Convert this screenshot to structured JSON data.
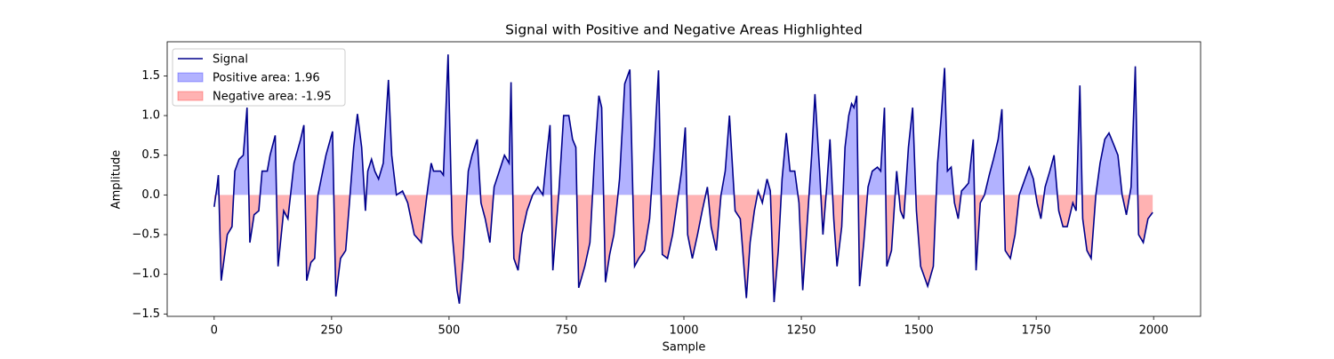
{
  "chart_data": {
    "type": "line",
    "title": "Signal with Positive and Negative Areas Highlighted",
    "xlabel": "Sample",
    "ylabel": "Amplitude",
    "x": [
      0,
      6,
      9,
      15,
      28,
      38,
      44,
      53,
      62,
      70,
      76,
      85,
      95,
      102,
      113,
      119,
      130,
      136,
      148,
      157,
      170,
      184,
      191,
      197,
      206,
      214,
      221,
      238,
      252,
      259,
      269,
      280,
      288,
      297,
      305,
      314,
      322,
      327,
      335,
      342,
      350,
      360,
      371,
      378,
      388,
      401,
      412,
      426,
      441,
      454,
      462,
      467,
      482,
      488,
      498,
      507,
      517,
      522,
      530,
      541,
      549,
      560,
      568,
      577,
      587,
      596,
      607,
      618,
      628,
      632,
      638,
      647,
      655,
      666,
      678,
      689,
      700,
      708,
      715,
      721,
      734,
      744,
      755,
      763,
      770,
      776,
      789,
      800,
      810,
      819,
      825,
      833,
      842,
      851,
      863,
      874,
      885,
      895,
      904,
      916,
      927,
      937,
      946,
      954,
      965,
      976,
      988,
      995,
      1003,
      1008,
      1018,
      1029,
      1039,
      1050,
      1058,
      1069,
      1079,
      1088,
      1097,
      1109,
      1120,
      1133,
      1141,
      1150,
      1158,
      1167,
      1177,
      1184,
      1192,
      1201,
      1209,
      1218,
      1226,
      1236,
      1245,
      1253,
      1262,
      1272,
      1279,
      1289,
      1296,
      1304,
      1311,
      1319,
      1326,
      1336,
      1343,
      1351,
      1357,
      1362,
      1368,
      1374,
      1383,
      1392,
      1401,
      1412,
      1419,
      1427,
      1432,
      1442,
      1453,
      1461,
      1468,
      1478,
      1487,
      1495,
      1504,
      1519,
      1531,
      1540,
      1548,
      1555,
      1561,
      1569,
      1576,
      1584,
      1591,
      1599,
      1606,
      1616,
      1622,
      1631,
      1640,
      1650,
      1659,
      1669,
      1677,
      1684,
      1695,
      1705,
      1714,
      1726,
      1735,
      1744,
      1752,
      1760,
      1769,
      1779,
      1788,
      1798,
      1807,
      1816,
      1828,
      1835,
      1843,
      1849,
      1858,
      1867,
      1877,
      1886,
      1896,
      1905,
      1914,
      1924,
      1933,
      1942,
      1952,
      1961,
      1968,
      1978,
      1988,
      1998
    ],
    "series": [
      {
        "name": "Signal",
        "color": "#00008b",
        "values": [
          -0.15,
          0.1,
          0.25,
          -1.08,
          -0.5,
          -0.4,
          0.3,
          0.45,
          0.5,
          1.1,
          -0.6,
          -0.25,
          -0.2,
          0.3,
          0.3,
          0.5,
          0.75,
          -0.9,
          -0.2,
          -0.3,
          0.4,
          0.7,
          0.88,
          -1.08,
          -0.85,
          -0.8,
          0.0,
          0.5,
          0.8,
          -1.28,
          -0.8,
          -0.7,
          -0.1,
          0.6,
          1.02,
          0.6,
          -0.2,
          0.3,
          0.45,
          0.3,
          0.2,
          0.4,
          1.45,
          0.5,
          0.0,
          0.05,
          -0.1,
          -0.5,
          -0.6,
          0.05,
          0.4,
          0.3,
          0.3,
          0.25,
          1.77,
          -0.5,
          -1.2,
          -1.37,
          -0.8,
          0.3,
          0.5,
          0.7,
          -0.1,
          -0.3,
          -0.6,
          0.1,
          0.3,
          0.5,
          0.4,
          1.42,
          -0.8,
          -0.95,
          -0.5,
          -0.2,
          0.0,
          0.1,
          0.0,
          0.5,
          0.88,
          -0.95,
          0.05,
          1.0,
          1.0,
          0.7,
          0.6,
          -1.17,
          -0.9,
          -0.6,
          0.5,
          1.25,
          1.1,
          -1.1,
          -0.75,
          -0.5,
          0.2,
          1.4,
          1.58,
          -0.9,
          -0.8,
          -0.7,
          -0.3,
          0.6,
          1.57,
          -0.75,
          -0.8,
          -0.5,
          0.0,
          0.3,
          0.85,
          -0.5,
          -0.8,
          -0.5,
          -0.2,
          0.1,
          -0.4,
          -0.7,
          0.0,
          0.3,
          1.0,
          -0.2,
          -0.3,
          -1.3,
          -0.6,
          -0.2,
          0.05,
          -0.1,
          0.2,
          0.05,
          -1.35,
          -0.7,
          0.2,
          0.78,
          0.3,
          0.3,
          -0.1,
          -1.2,
          -0.4,
          0.5,
          1.27,
          0.3,
          -0.5,
          0.1,
          0.7,
          -0.3,
          -0.9,
          -0.4,
          0.6,
          1.0,
          1.15,
          1.1,
          1.25,
          -1.15,
          -0.6,
          0.1,
          0.3,
          0.35,
          0.3,
          1.1,
          -0.9,
          -0.7,
          0.3,
          -0.2,
          -0.3,
          0.6,
          1.1,
          -0.2,
          -0.9,
          -1.15,
          -0.9,
          0.4,
          1.0,
          1.6,
          0.3,
          0.35,
          -0.1,
          -0.3,
          0.05,
          0.1,
          0.15,
          0.7,
          -0.95,
          -0.1,
          0.0,
          0.25,
          0.45,
          0.7,
          1.08,
          -0.7,
          -0.8,
          -0.5,
          0.0,
          0.2,
          0.35,
          0.2,
          -0.1,
          -0.3,
          0.1,
          0.3,
          0.5,
          -0.2,
          -0.4,
          -0.4,
          -0.1,
          -0.2,
          1.38,
          -0.3,
          -0.7,
          -0.8,
          0.0,
          0.4,
          0.7,
          0.78,
          0.65,
          0.5,
          0.0,
          -0.25,
          0.1,
          1.62,
          -0.5,
          -0.6,
          -0.3,
          -0.22
        ]
      }
    ],
    "areas": [
      {
        "name": "Positive area: 1.96",
        "color": "#0000ff"
      },
      {
        "name": "Negative area: -1.95",
        "color": "#ff0000"
      }
    ],
    "xlim": [
      -100,
      2100
    ],
    "ylim": [
      -1.53,
      1.93
    ],
    "xticks": [
      0,
      250,
      500,
      750,
      1000,
      1250,
      1500,
      1750,
      2000
    ],
    "yticks": [
      {
        "value": -1.5,
        "label": "−1.5"
      },
      {
        "value": -1.0,
        "label": "−1.0"
      },
      {
        "value": -0.5,
        "label": "−0.5"
      },
      {
        "value": 0.0,
        "label": "0.0"
      },
      {
        "value": 0.5,
        "label": "0.5"
      },
      {
        "value": 1.0,
        "label": "1.0"
      },
      {
        "value": 1.5,
        "label": "1.5"
      }
    ],
    "legend": "upper left"
  }
}
